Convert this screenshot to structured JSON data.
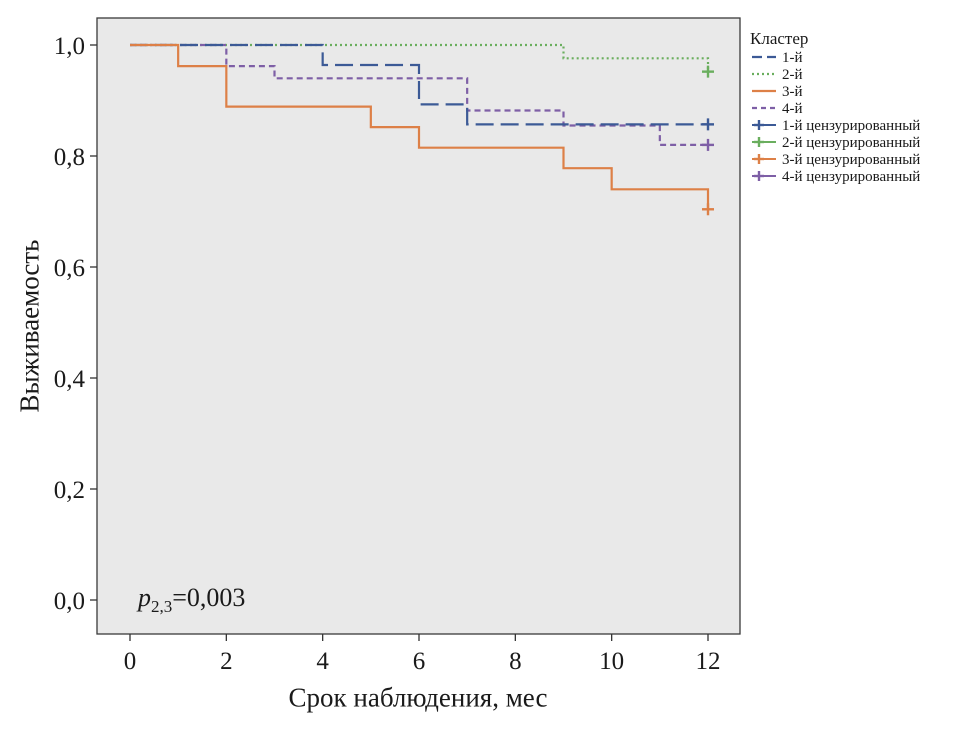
{
  "chart_data": {
    "type": "line",
    "subtype": "kaplan-meier-step",
    "title": "",
    "xlabel": "Срок наблюдения, мес",
    "ylabel": "Выживаемость",
    "xlim": [
      0,
      12
    ],
    "ylim": [
      0,
      1.0
    ],
    "grid": false,
    "panel_color": "#e9e9e9",
    "frame_color": "#3a3a3a",
    "xticks": [
      0,
      2,
      4,
      6,
      8,
      10,
      12
    ],
    "yticks": [
      {
        "v": 0.0,
        "label": "0,0"
      },
      {
        "v": 0.2,
        "label": "0,2"
      },
      {
        "v": 0.4,
        "label": "0,4"
      },
      {
        "v": 0.6,
        "label": "0,6"
      },
      {
        "v": 0.8,
        "label": "0,8"
      },
      {
        "v": 1.0,
        "label": "1,0"
      }
    ],
    "series": [
      {
        "name": "2-й",
        "color": "#6aae5e",
        "dash": "2,3",
        "points": [
          [
            0,
            1
          ],
          [
            9,
            1
          ],
          [
            9,
            0.976
          ],
          [
            12,
            0.976
          ],
          [
            12,
            0.952
          ]
        ],
        "censor": [
          [
            12,
            0.952
          ]
        ]
      },
      {
        "name": "4-й",
        "color": "#7e5fa6",
        "dash": "6,4",
        "points": [
          [
            0,
            1
          ],
          [
            2,
            1
          ],
          [
            2,
            0.962
          ],
          [
            3,
            0.962
          ],
          [
            3,
            0.94
          ],
          [
            7,
            0.94
          ],
          [
            7,
            0.882
          ],
          [
            9,
            0.882
          ],
          [
            9,
            0.855
          ],
          [
            11,
            0.855
          ],
          [
            11,
            0.82
          ],
          [
            12,
            0.82
          ]
        ],
        "censor": [
          [
            12,
            0.82
          ]
        ]
      },
      {
        "name": "1-й",
        "color": "#3c5a96",
        "dash": "18,7",
        "points": [
          [
            0,
            1
          ],
          [
            4,
            1
          ],
          [
            4,
            0.964
          ],
          [
            6,
            0.964
          ],
          [
            6,
            0.893
          ],
          [
            7,
            0.893
          ],
          [
            7,
            0.857
          ],
          [
            12,
            0.857
          ]
        ],
        "censor": [
          [
            12,
            0.857
          ]
        ]
      },
      {
        "name": "3-й",
        "color": "#dd8047",
        "dash": "",
        "points": [
          [
            0,
            1
          ],
          [
            1,
            1
          ],
          [
            1,
            0.962
          ],
          [
            2,
            0.962
          ],
          [
            2,
            0.889
          ],
          [
            5,
            0.889
          ],
          [
            5,
            0.852
          ],
          [
            6,
            0.852
          ],
          [
            6,
            0.815
          ],
          [
            9,
            0.815
          ],
          [
            9,
            0.778
          ],
          [
            10,
            0.778
          ],
          [
            10,
            0.74
          ],
          [
            12,
            0.74
          ],
          [
            12,
            0.704
          ]
        ],
        "censor": [
          [
            12,
            0.704
          ]
        ]
      }
    ],
    "legend": {
      "title": "Кластер",
      "position": "right-top",
      "entries": [
        {
          "label": "1-й",
          "color": "#3c5a96",
          "dash": "10,5",
          "censored": false
        },
        {
          "label": "2-й",
          "color": "#6aae5e",
          "dash": "2,3",
          "censored": false
        },
        {
          "label": "3-й",
          "color": "#dd8047",
          "dash": "",
          "censored": false
        },
        {
          "label": "4-й",
          "color": "#7e5fa6",
          "dash": "5,4",
          "censored": false
        },
        {
          "label": "1-й цензурированный",
          "color": "#3c5a96",
          "dash": "",
          "censored": true
        },
        {
          "label": "2-й цензурированный",
          "color": "#6aae5e",
          "dash": "",
          "censored": true
        },
        {
          "label": "3-й цензурированный",
          "color": "#dd8047",
          "dash": "",
          "censored": true
        },
        {
          "label": "4-й цензурированный",
          "color": "#7e5fa6",
          "dash": "",
          "censored": true
        }
      ]
    }
  },
  "annotation": {
    "var": "p",
    "sub": "2,3",
    "rest": "=0,003"
  }
}
